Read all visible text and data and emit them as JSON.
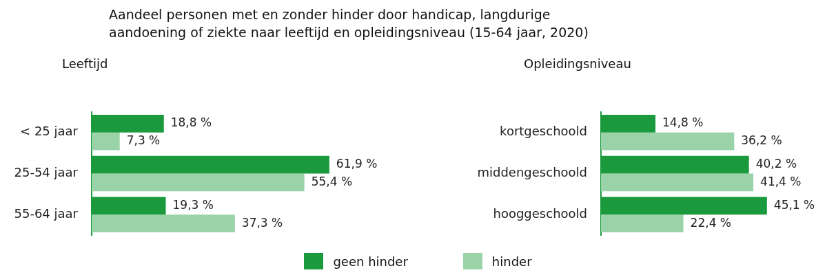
{
  "chart_data": [
    {
      "type": "bar",
      "orientation": "horizontal",
      "title": "Aandeel personen met en zonder hinder door handicap, langdurige aandoening of ziekte naar leeftijd en opleidingsniveau (15-64 jaar, 2020)",
      "subtitle": "Leeftijd",
      "categories": [
        "< 25 jaar",
        "25-54 jaar",
        "55-64 jaar"
      ],
      "legend": "bottom",
      "series": [
        {
          "name": "geen hinder",
          "color": "#1a9a3c",
          "values": [
            18.8,
            61.9,
            19.3
          ],
          "value_labels": [
            "18,8 %",
            "61,9 %",
            "19,3 %"
          ]
        },
        {
          "name": "hinder",
          "color": "#9bd3a8",
          "values": [
            7.3,
            55.4,
            37.3
          ],
          "value_labels": [
            "7,3 %",
            "55,4 %",
            "37,3 %"
          ]
        }
      ]
    },
    {
      "type": "bar",
      "orientation": "horizontal",
      "subtitle": "Opleidingsniveau",
      "categories": [
        "kortgeschoold",
        "middengeschoold",
        "hooggeschoold"
      ],
      "legend": "bottom",
      "series": [
        {
          "name": "geen hinder",
          "color": "#1a9a3c",
          "values": [
            14.8,
            40.2,
            45.1
          ],
          "value_labels": [
            "14,8 %",
            "40,2 %",
            "45,1 %"
          ]
        },
        {
          "name": "hinder",
          "color": "#9bd3a8",
          "values": [
            36.2,
            41.4,
            22.4
          ],
          "value_labels": [
            "36,2 %",
            "41,4 %",
            "22,4 %"
          ]
        }
      ]
    }
  ]
}
